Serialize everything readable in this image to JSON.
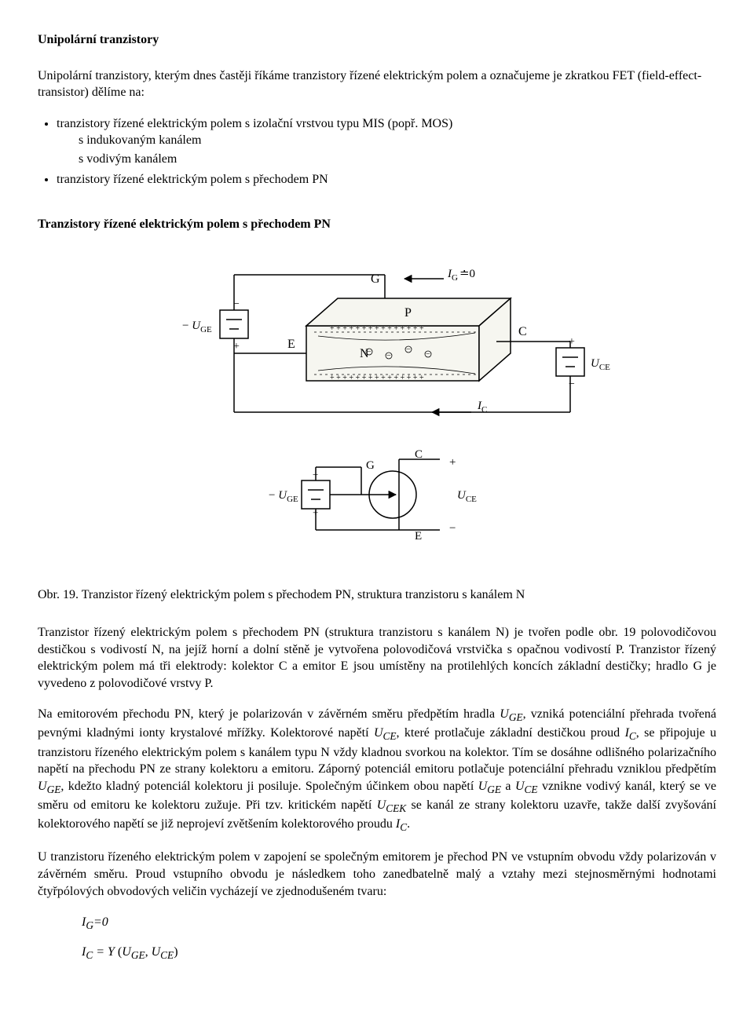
{
  "title": "Unipolární tranzistory",
  "intro": "Unipolární tranzistory, kterým dnes častěji říkáme tranzistory řízené elektrickým polem a označujeme je zkratkou FET (field-effect-transistor) dělíme na:",
  "list": {
    "item1": "tranzistory řízené elektrickým polem s izolační vrstvou typu MIS (popř. MOS)",
    "sub1": "s indukovaným kanálem",
    "sub2": "s vodivým kanálem",
    "item2": "tranzistory řízené elektrickým polem s přechodem PN"
  },
  "section_heading": "Tranzistory řízené elektrickým polem s přechodem PN",
  "figcaption": "Obr. 19. Tranzistor řízený elektrickým polem s přechodem PN, struktura tranzistoru s kanálem N",
  "body_para1": "Tranzistor řízený elektrickým polem s přechodem PN (struktura tranzistoru s kanálem N) je tvořen podle obr. 19 polovodičovou destičkou s vodivostí N, na jejíž horní a dolní stěně je vytvořena polovodičová vrstvička s opačnou vodivostí P. Tranzistor řízený elektrickým polem má tři elektrody: kolektor C a emitor E jsou umístěny na protilehlých koncích základní destičky; hradlo G je vyvedeno z polovodičové vrstvy P.",
  "body_para2_html": "Na emitorovém přechodu PN, který je polarizován v závěrném směru předpětím hradla <span class=\"ital\">U<sub>GE</sub></span>, vzniká potenciální přehrada tvořená pevnými kladnými ionty krystalové mřížky. Kolektorové napětí <span class=\"ital\">U<sub>CE</sub></span>, které protlačuje základní destičkou proud <span class=\"ital\">I<sub>C</sub></span>, se připojuje u tranzistoru řízeného elektrickým polem s kanálem typu N vždy kladnou svorkou na kolektor. Tím se dosáhne odlišného polarizačního napětí na přechodu PN ze strany kolektoru a emitoru. Záporný potenciál emitoru potlačuje potenciální přehradu vzniklou předpětím <span class=\"ital\">U<sub>GE</sub></span>, kdežto kladný potenciál kolektoru ji posiluje. Společným účinkem obou napětí <span class=\"ital\">U<sub>GE</sub></span> a <span class=\"ital\">U<sub>CE</sub></span> vznikne vodivý kanál, který se ve směru od emitoru ke kolektoru zužuje. Při tzv. kritickém napětí <span class=\"ital\">U<sub>CEK</sub></span> se kanál ze strany kolektoru uzavře, takže další zvyšování kolektorového napětí se již neprojeví zvětšením kolektorového proudu <span class=\"ital\">I<sub>C</sub></span>.",
  "body_para3": "U tranzistoru řízeného elektrickým polem v zapojení se společným emitorem je přechod PN ve vstupním obvodu vždy polarizován v závěrném směru. Proud vstupního obvodu je následkem toho zanedbatelně malý a vztahy mezi stejnosměrnými hodnotami čtyřpólových obvodových veličin vycházejí ve zjednodušeném tvaru:",
  "eq1": "I<sub>G</sub>=0",
  "eq2": "I<sub>C</sub> = Y <span class=\"rm\">(</span>U<sub>GE</sub>, U<sub>CE</sub><span class=\"rm\">)</span>",
  "diagram": {
    "labels": {
      "G": "G",
      "E": "E",
      "C": "C",
      "P": "P",
      "N": "N",
      "IG": "I",
      "IG_sub": "G",
      "IG_eq": "≐0",
      "IC": "I",
      "IC_sub": "C",
      "UGE": "U",
      "UGE_sub": "GE",
      "minus": "−",
      "UCE": "U",
      "UCE_sub": "CE",
      "plus": "+",
      "neg": "−"
    },
    "colors": {
      "stroke": "#000000",
      "fill_bg": "#f6f6f0",
      "hatch": "#000000"
    }
  }
}
